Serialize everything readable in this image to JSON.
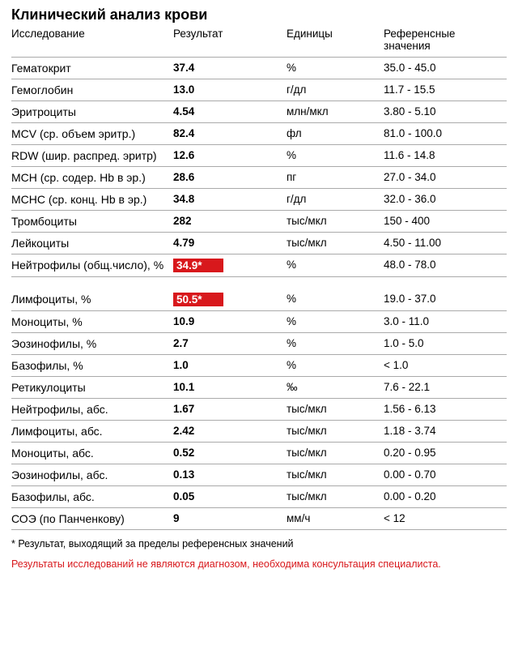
{
  "title": "Клинический анализ крови",
  "columns": {
    "param": "Исследование",
    "result": "Результат",
    "units": "Единицы",
    "ref": "Референсные значения"
  },
  "flag_bg": "#d8181c",
  "flag_fg": "#ffffff",
  "disclaimer_color": "#d8181c",
  "rows": [
    {
      "param": "Гематокрит",
      "result": "37.4",
      "units": "%",
      "ref": "35.0 - 45.0",
      "flagged": false
    },
    {
      "param": "Гемоглобин",
      "result": "13.0",
      "units": "г/дл",
      "ref": "11.7 - 15.5",
      "flagged": false
    },
    {
      "param": "Эритроциты",
      "result": "4.54",
      "units": "млн/мкл",
      "ref": "3.80 - 5.10",
      "flagged": false
    },
    {
      "param": "MCV (ср. объем эритр.)",
      "result": "82.4",
      "units": "фл",
      "ref": "81.0 - 100.0",
      "flagged": false
    },
    {
      "param": "RDW (шир. распред. эритр)",
      "result": "12.6",
      "units": "%",
      "ref": "11.6 - 14.8",
      "flagged": false
    },
    {
      "param": "MCH (ср. содер. Hb в эр.)",
      "result": "28.6",
      "units": "пг",
      "ref": "27.0 - 34.0",
      "flagged": false
    },
    {
      "param": "MCHC (ср. конц. Hb в эр.)",
      "result": "34.8",
      "units": "г/дл",
      "ref": "32.0 - 36.0",
      "flagged": false
    },
    {
      "param": "Тромбоциты",
      "result": "282",
      "units": "тыс/мкл",
      "ref": "150 - 400",
      "flagged": false
    },
    {
      "param": "Лейкоциты",
      "result": "4.79",
      "units": "тыс/мкл",
      "ref": "4.50 - 11.00",
      "flagged": false
    },
    {
      "param": "Нейтрофилы (общ.число), %",
      "result": "34.9*",
      "units": "%",
      "ref": "48.0 - 78.0",
      "flagged": true
    },
    {
      "spacer": true
    },
    {
      "param": "Лимфоциты, %",
      "result": "50.5*",
      "units": "%",
      "ref": "19.0 - 37.0",
      "flagged": true
    },
    {
      "param": "Моноциты, %",
      "result": "10.9",
      "units": "%",
      "ref": "3.0 - 11.0",
      "flagged": false
    },
    {
      "param": "Эозинофилы, %",
      "result": "2.7",
      "units": "%",
      "ref": "1.0 - 5.0",
      "flagged": false
    },
    {
      "param": "Базофилы, %",
      "result": "1.0",
      "units": "%",
      "ref": "< 1.0",
      "flagged": false
    },
    {
      "param": "Ретикулоциты",
      "result": "10.1",
      "units": "‰",
      "ref": "7.6 - 22.1",
      "flagged": false
    },
    {
      "param": "Нейтрофилы, абс.",
      "result": "1.67",
      "units": "тыс/мкл",
      "ref": "1.56 - 6.13",
      "flagged": false
    },
    {
      "param": "Лимфоциты, абс.",
      "result": "2.42",
      "units": "тыс/мкл",
      "ref": "1.18 - 3.74",
      "flagged": false
    },
    {
      "param": "Моноциты, абс.",
      "result": "0.52",
      "units": "тыс/мкл",
      "ref": "0.20 - 0.95",
      "flagged": false
    },
    {
      "param": "Эозинофилы, абс.",
      "result": "0.13",
      "units": "тыс/мкл",
      "ref": "0.00 - 0.70",
      "flagged": false
    },
    {
      "param": "Базофилы, абс.",
      "result": "0.05",
      "units": "тыс/мкл",
      "ref": "0.00 - 0.20",
      "flagged": false
    },
    {
      "param": "СОЭ (по Панченкову)",
      "result": "9",
      "units": "мм/ч",
      "ref": "< 12",
      "flagged": false
    }
  ],
  "footnote": "* Результат, выходящий за пределы референсных значений",
  "disclaimer": "Результаты исследований не являются диагнозом, необходима консультация специалиста."
}
